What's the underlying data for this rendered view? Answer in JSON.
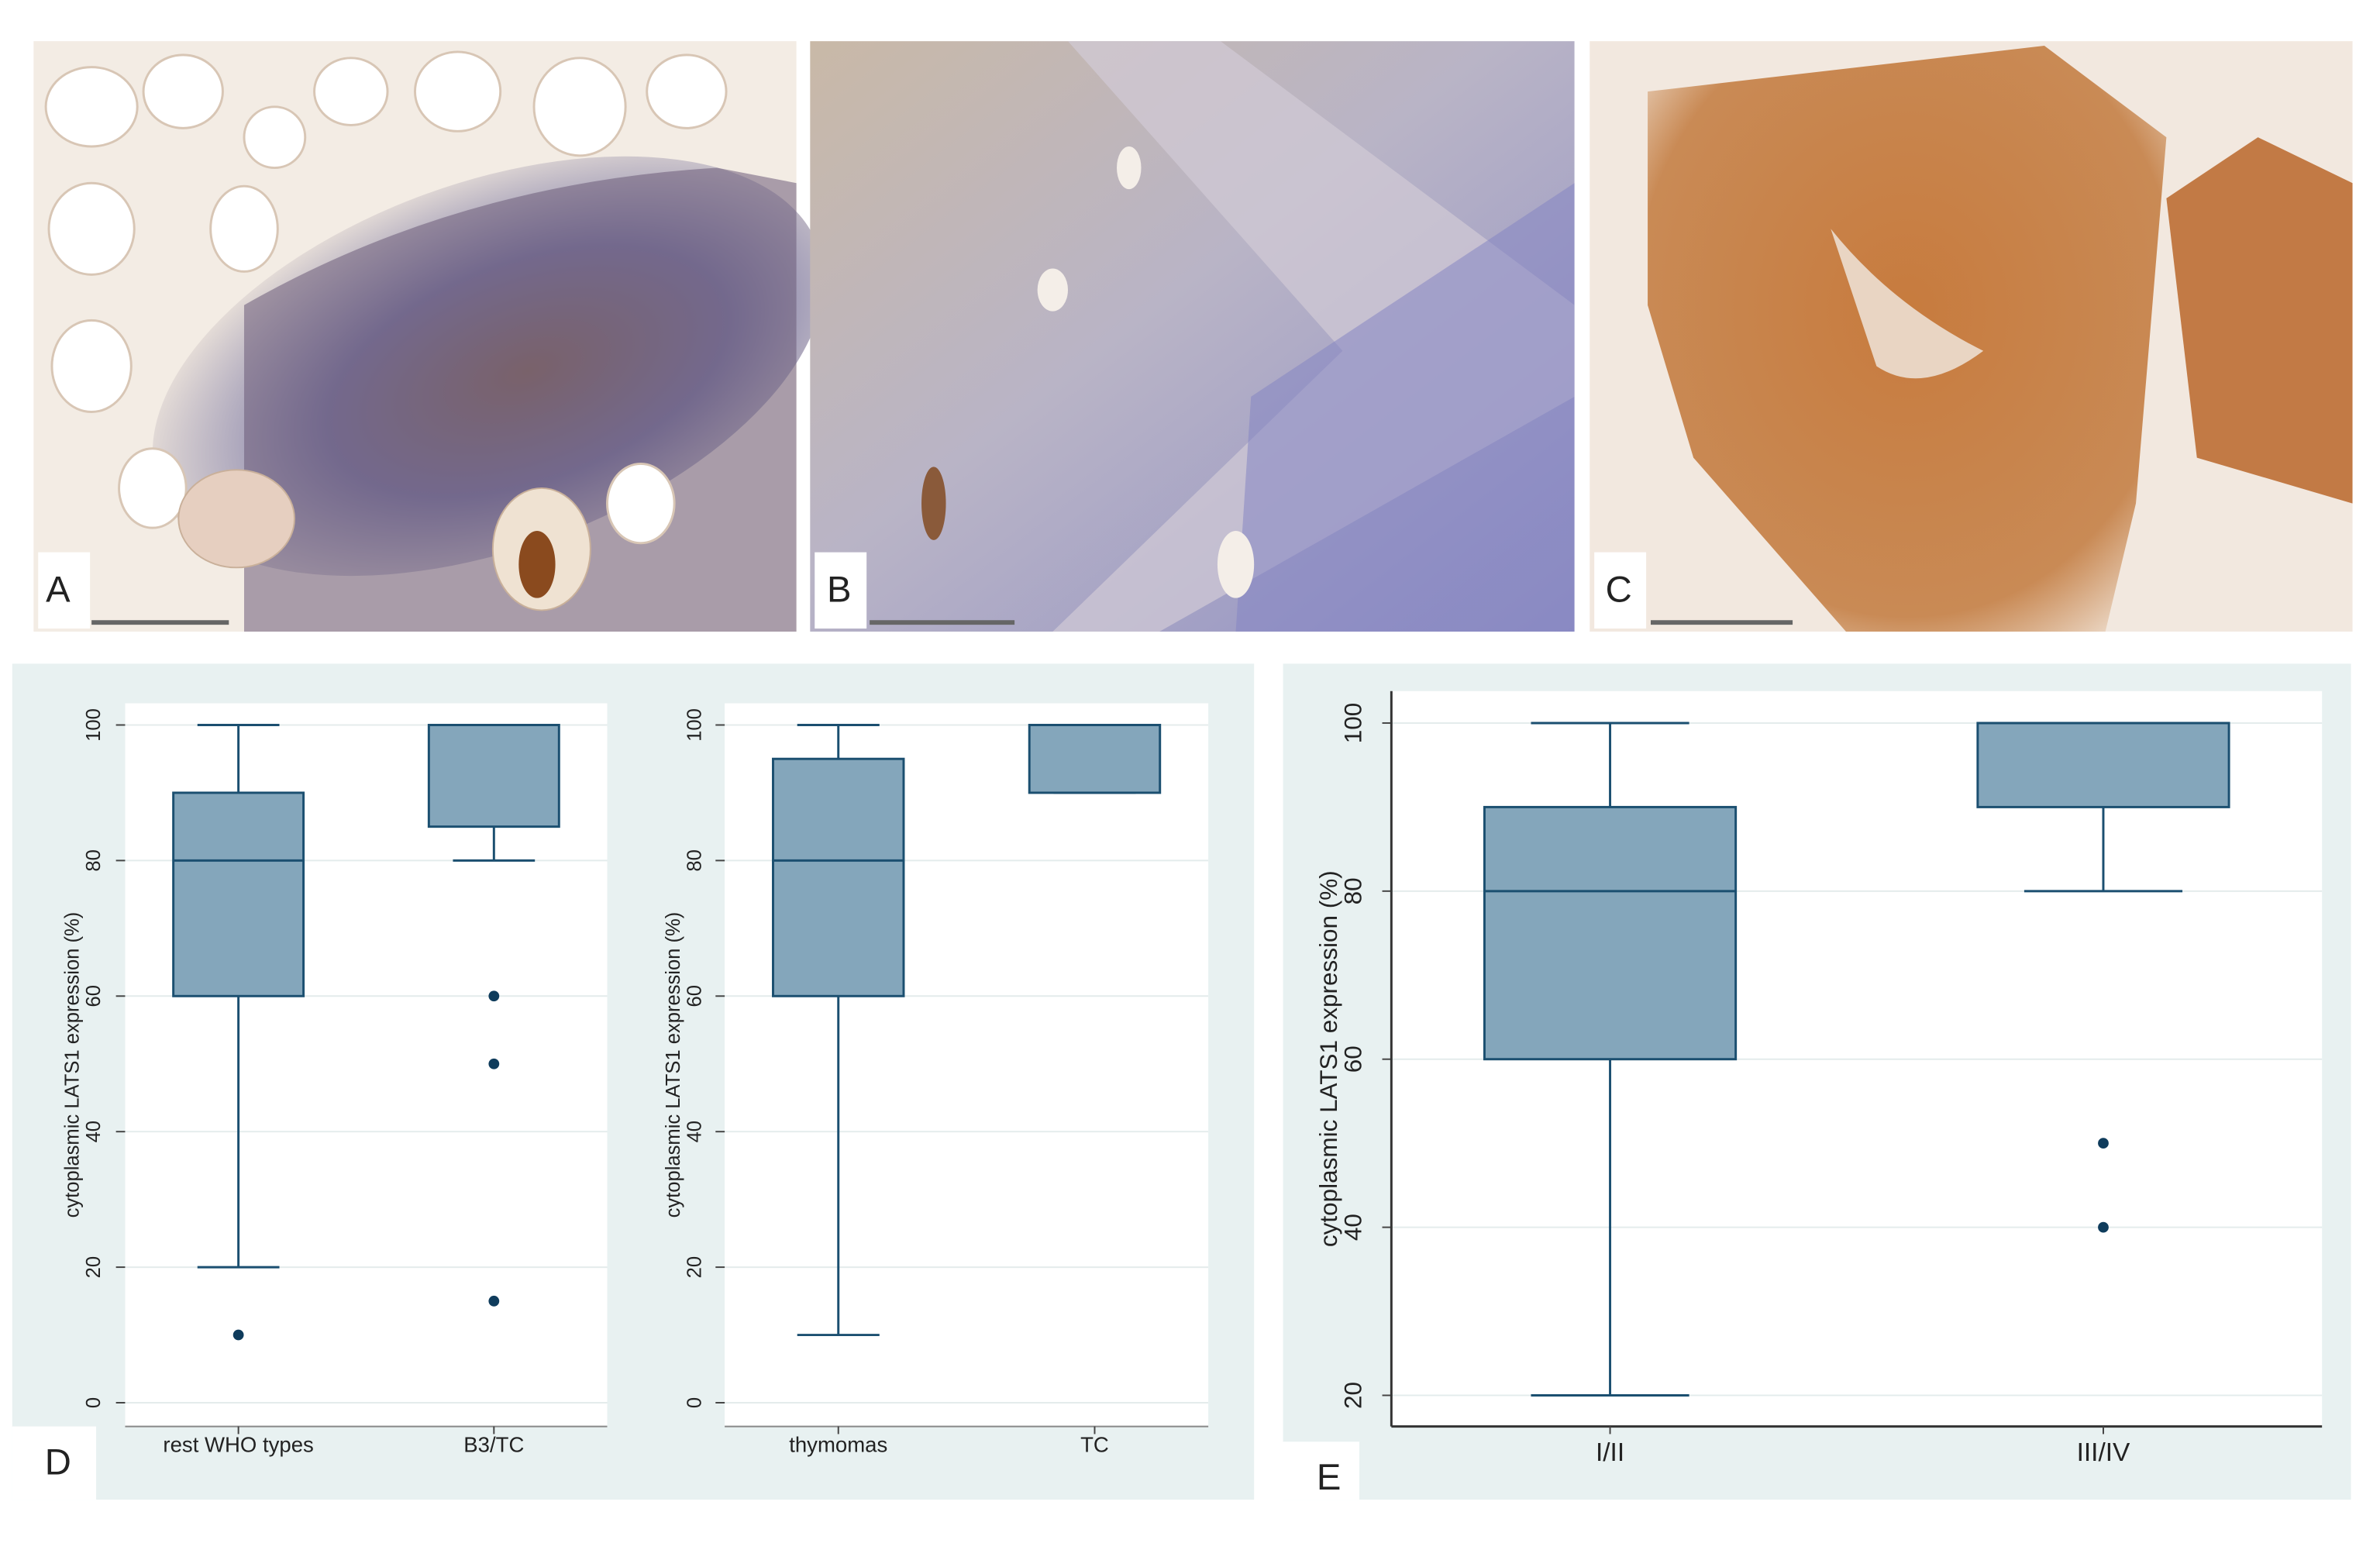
{
  "panel_labels": [
    "A",
    "B",
    "C",
    "D",
    "E"
  ],
  "chart_data": [
    {
      "type": "box",
      "ylabel": "cytoplasmic LATS1 expression (%)",
      "categories": [
        "rest WHO types",
        "B3/TC"
      ],
      "boxes": [
        {
          "whisker_low": 20,
          "q1": 60,
          "median": 80,
          "q3": 90,
          "whisker_high": 100,
          "outliers": [
            10
          ]
        },
        {
          "whisker_low": 80,
          "q1": 85,
          "median": 100,
          "q3": 100,
          "whisker_high": 100,
          "outliers": [
            60,
            50,
            15
          ]
        }
      ],
      "color": "#84a6bb",
      "line_color": "#1b4f70",
      "ylim": [
        -3.5,
        103.2
      ],
      "yticks": [
        0,
        20,
        40,
        60,
        80,
        100
      ],
      "grid": true
    },
    {
      "type": "box",
      "ylabel": "cytoplasmic LATS1 expression (%)",
      "categories": [
        "thymomas",
        "TC"
      ],
      "boxes": [
        {
          "whisker_low": 10,
          "q1": 60,
          "median": 80,
          "q3": 95,
          "whisker_high": 100,
          "outliers": []
        },
        {
          "whisker_low": 90,
          "q1": 90,
          "median": 100,
          "q3": 100,
          "whisker_high": 100,
          "outliers": []
        }
      ],
      "color": "#84a6bb",
      "line_color": "#1b4f70",
      "ylim": [
        -3.5,
        103.2
      ],
      "yticks": [
        0,
        20,
        40,
        60,
        80,
        100
      ],
      "grid": true
    },
    {
      "type": "box",
      "ylabel": "cytoplasmic LATS1 expression (%)",
      "categories": [
        "I/II",
        "III/IV"
      ],
      "boxes": [
        {
          "whisker_low": 20,
          "q1": 60,
          "median": 80,
          "q3": 90,
          "whisker_high": 100,
          "outliers": []
        },
        {
          "whisker_low": 80,
          "q1": 90,
          "median": 100,
          "q3": 100,
          "whisker_high": 100,
          "outliers": [
            50,
            40
          ]
        }
      ],
      "color": "#84a6bb",
      "line_color": "#1b4f70",
      "ylim": [
        16.3,
        103.8
      ],
      "yticks": [
        20,
        40,
        60,
        80,
        100
      ],
      "grid": true
    }
  ]
}
